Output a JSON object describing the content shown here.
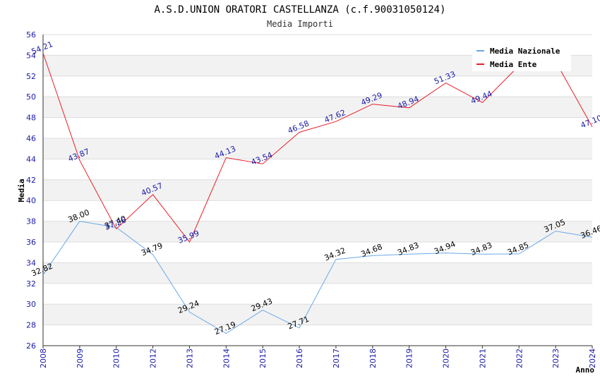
{
  "chart_data": {
    "type": "line",
    "title": "A.S.D.UNION ORATORI CASTELLANZA (c.f.90031050124)",
    "subtitle": "Media Importi",
    "xlabel": "Anno",
    "ylabel": "Media",
    "ylim": [
      26,
      56
    ],
    "yticks": [
      "26",
      "28",
      "30",
      "32",
      "34",
      "36",
      "38",
      "40",
      "42",
      "44",
      "46",
      "48",
      "50",
      "52",
      "54",
      "56"
    ],
    "categories": [
      "2008",
      "2009",
      "2010",
      "2012",
      "2013",
      "2014",
      "2015",
      "2016",
      "2017",
      "2018",
      "2019",
      "2020",
      "2021",
      "2022",
      "2023",
      "2024"
    ],
    "grid": true,
    "legend_position": "top-right",
    "series": [
      {
        "name": "Media Nazionale",
        "color": "#6aa8e8",
        "values": [
          32.82,
          38.0,
          37.4,
          34.79,
          29.24,
          27.19,
          29.43,
          27.71,
          34.32,
          34.68,
          34.83,
          34.94,
          34.83,
          34.85,
          37.05,
          36.46
        ],
        "labels": [
          "32.82",
          "38.00",
          "37.40",
          "34.79",
          "29.24",
          "27.19",
          "29.43",
          "27.71",
          "34.32",
          "34.68",
          "34.83",
          "34.94",
          "34.83",
          "34.85",
          "37.05",
          "36.46"
        ]
      },
      {
        "name": "Media Ente",
        "color": "#e8202a",
        "values": [
          54.21,
          43.87,
          37.26,
          40.57,
          35.99,
          44.13,
          43.54,
          46.58,
          47.62,
          49.29,
          48.94,
          51.33,
          49.44,
          53.0,
          53.4,
          47.1
        ],
        "labels": [
          "54.21",
          "43.87",
          "37.26",
          "40.57",
          "35.99",
          "44.13",
          "43.54",
          "46.58",
          "47.62",
          "49.29",
          "48.94",
          "51.33",
          "49.44",
          "",
          "",
          "47.10"
        ]
      }
    ]
  }
}
